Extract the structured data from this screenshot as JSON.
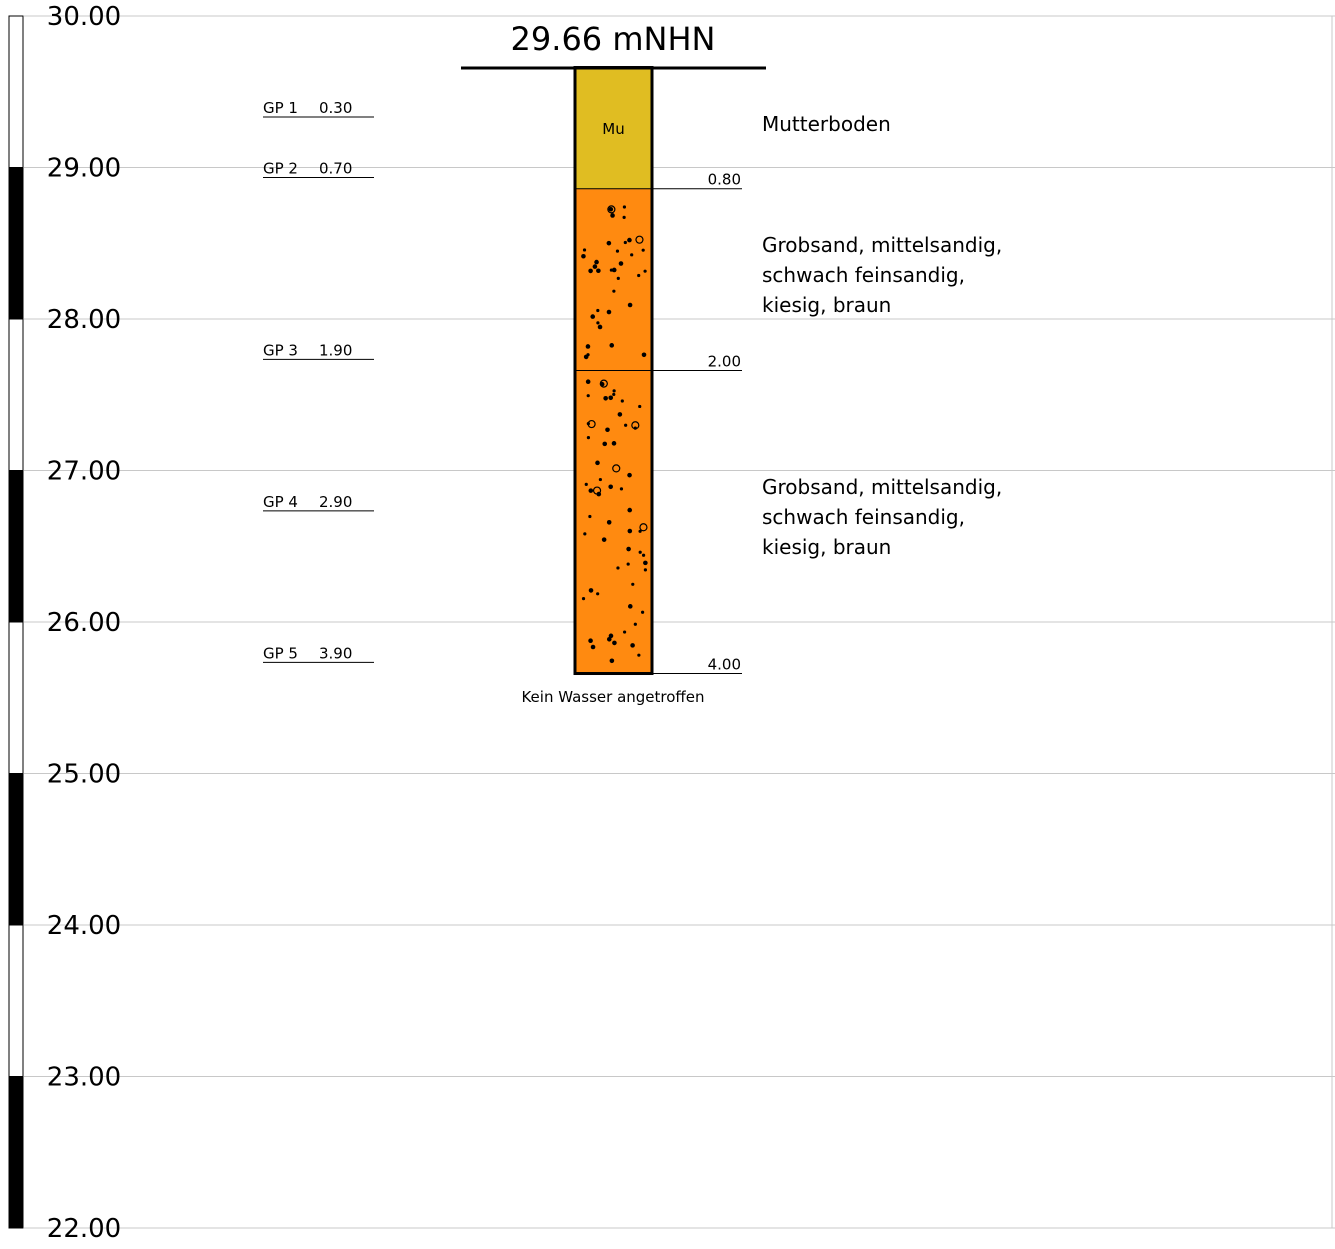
{
  "chart_data": {
    "type": "borehole_log",
    "title": "29.66 mNHN",
    "elevation_axis": {
      "range": [
        22.0,
        30.0
      ],
      "ticks": [
        "30.00",
        "29.00",
        "28.00",
        "27.00",
        "26.00",
        "25.00",
        "24.00",
        "23.00",
        "22.00"
      ]
    },
    "ground_elevation": 29.66,
    "samples": [
      {
        "label": "GP 1",
        "depth": "0.30",
        "depth_value": 0.3
      },
      {
        "label": "GP 2",
        "depth": "0.70",
        "depth_value": 0.7
      },
      {
        "label": "GP 3",
        "depth": "1.90",
        "depth_value": 1.9
      },
      {
        "label": "GP 4",
        "depth": "2.90",
        "depth_value": 2.9
      },
      {
        "label": "GP 5",
        "depth": "3.90",
        "depth_value": 3.9
      }
    ],
    "layers": [
      {
        "top": 0.0,
        "bottom": 0.8,
        "bottom_label": "0.80",
        "code": "Mu",
        "description": [
          "Mutterboden"
        ],
        "color": "#e0bd22",
        "pattern": "none"
      },
      {
        "top": 0.8,
        "bottom": 2.0,
        "bottom_label": "2.00",
        "code": "",
        "description": [
          "Grobsand, mittelsandig,",
          "schwach feinsandig,",
          "kiesig, braun"
        ],
        "color": "#ff8a10",
        "pattern": "dots"
      },
      {
        "top": 2.0,
        "bottom": 4.0,
        "bottom_label": "4.00",
        "code": "",
        "description": [
          "Grobsand, mittelsandig,",
          "schwach feinsandig,",
          "kiesig, braun"
        ],
        "color": "#ff8a10",
        "pattern": "dots"
      }
    ],
    "water_note": "Kein Wasser angetroffen",
    "colors": {
      "grid": "#c8c8c8",
      "topsoil": "#e0bd22",
      "sand": "#ff8a10"
    }
  }
}
